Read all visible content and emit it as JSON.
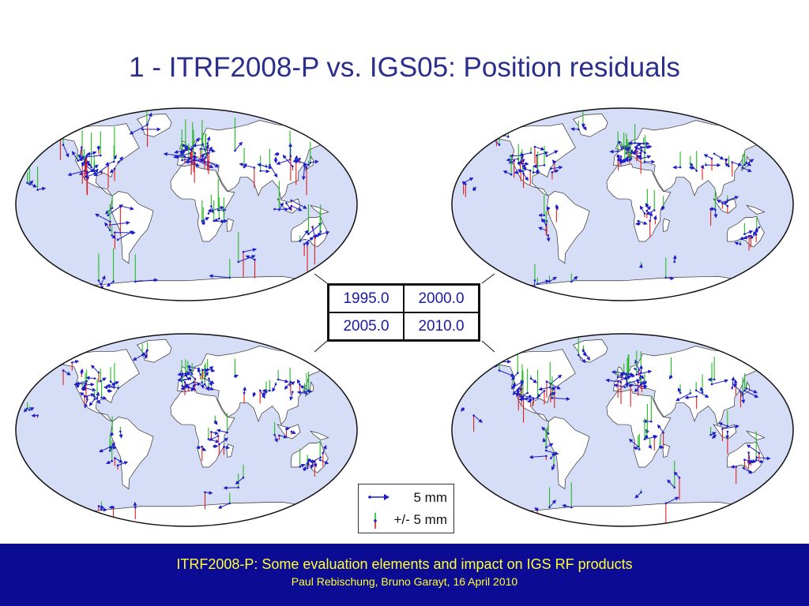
{
  "slide": {
    "title": "1 - ITRF2008-P vs. IGS05: Position residuals"
  },
  "epochs": {
    "top_left": "1995.0",
    "top_right": "2000.0",
    "bottom_left": "2005.0",
    "bottom_right": "2010.0"
  },
  "legend": {
    "horizontal_label": "5 mm",
    "vertical_label": "+/- 5 mm"
  },
  "footer": {
    "line1": "ITRF2008-P: Some evaluation elements and impact on IGS RF products",
    "line2": "Paul Rebischung, Bruno Garayt, 16 April 2010"
  },
  "colors": {
    "ocean": "#d6ddf7",
    "land": "#ffffff",
    "title_text": "#2b2e8c",
    "footer_bg": "#0b0c93",
    "footer_text": "#ffff33",
    "horizontal_arrow": "#1d1dc8",
    "vertical_up": "#22bb22",
    "vertical_down": "#e02020"
  }
}
